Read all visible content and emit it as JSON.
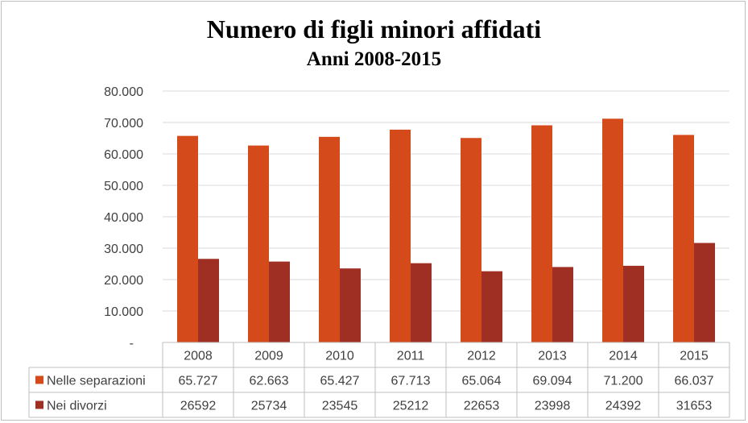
{
  "chart_data": {
    "type": "bar",
    "title": "Numero di figli minori affidati",
    "subtitle": "Anni 2008-2015",
    "categories": [
      "2008",
      "2009",
      "2010",
      "2011",
      "2012",
      "2013",
      "2014",
      "2015"
    ],
    "series": [
      {
        "name": "Nelle separazioni",
        "color": "#d44a1a",
        "values": [
          65727,
          62663,
          65427,
          67713,
          65064,
          69094,
          71200,
          66037
        ],
        "labels": [
          "65.727",
          "62.663",
          "65.427",
          "67.713",
          "65.064",
          "69.094",
          "71.200",
          "66.037"
        ]
      },
      {
        "name": "Nei divorzi",
        "color": "#9e2f22",
        "values": [
          26592,
          25734,
          23545,
          25212,
          22653,
          23998,
          24392,
          31653
        ],
        "labels": [
          "26592",
          "25734",
          "23545",
          "25212",
          "22653",
          "23998",
          "24392",
          "31653"
        ]
      }
    ],
    "ylim": [
      0,
      80000
    ],
    "yticks": [
      "-",
      "10.000",
      "20.000",
      "30.000",
      "40.000",
      "50.000",
      "60.000",
      "70.000",
      "80.000"
    ],
    "grid": true,
    "legend": "data-table"
  }
}
